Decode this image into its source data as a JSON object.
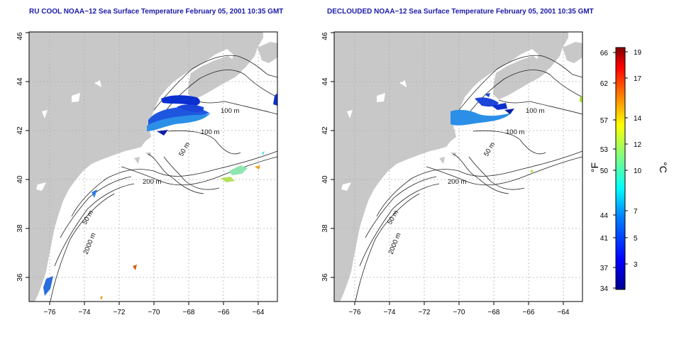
{
  "panels": [
    {
      "title": "RU COOL NOAA−12 Sea Surface Temperature February 05, 2001 10:35 GMT",
      "contour_labels": [
        "100 m",
        "100 m",
        "50 m",
        "200 m",
        "50 m",
        "2000 m"
      ]
    },
    {
      "title": "DECLOUDED NOAA−12 Sea Surface Temperature February 05, 2001 10:35 GMT",
      "contour_labels": [
        "100 m",
        "100 m",
        "50 m",
        "200 m",
        "50 m",
        "2000 m"
      ]
    }
  ],
  "map_axes": {
    "lon_ticks": [
      "−76",
      "−74",
      "−72",
      "−70",
      "−68",
      "−66",
      "−64"
    ],
    "lat_ticks": [
      "36",
      "38",
      "40",
      "42",
      "44",
      "46"
    ]
  },
  "colorbar": {
    "fahrenheit_label": "°F",
    "celsius_label": "°C",
    "fahrenheit_ticks": [
      "34",
      "37",
      "41",
      "44",
      "50",
      "53",
      "57",
      "62",
      "66"
    ],
    "celsius_ticks": [
      "3",
      "5",
      "7",
      "10",
      "12",
      "14",
      "17",
      "19"
    ]
  },
  "colors": {
    "land": "#c8c8c8",
    "grid": "#b0b0b0",
    "title": "#1a1aa8"
  }
}
